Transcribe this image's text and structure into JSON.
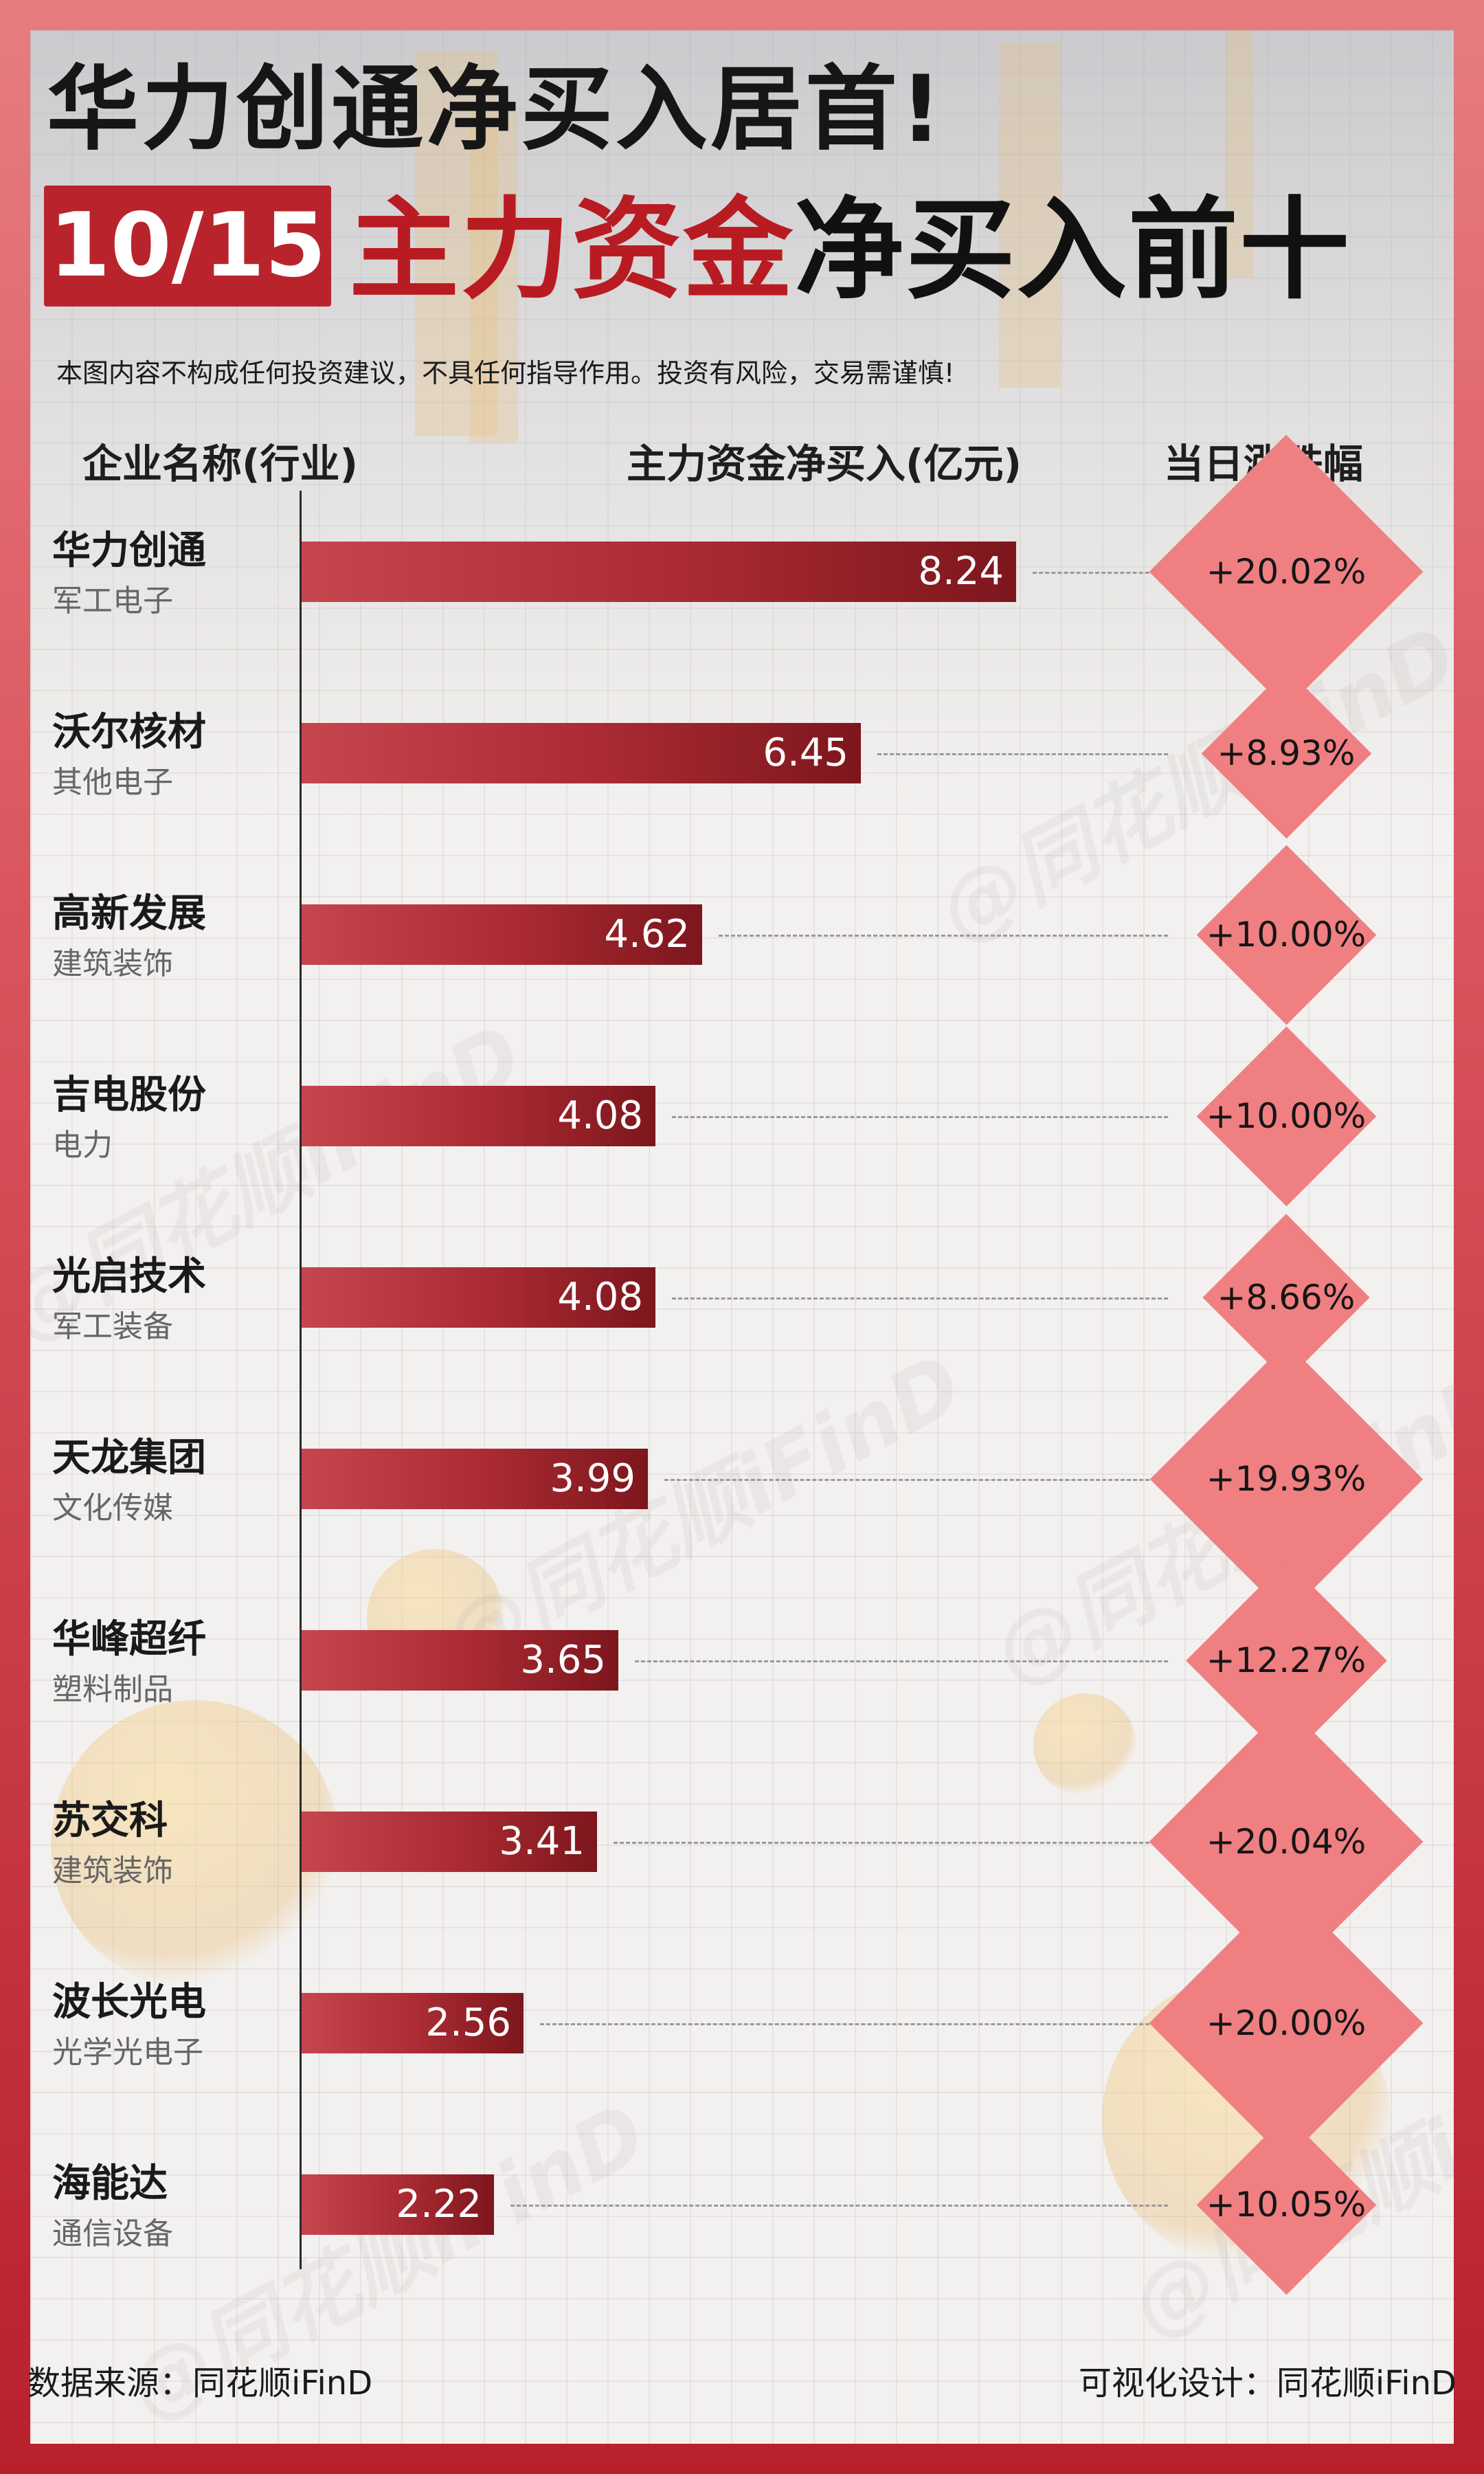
{
  "header": {
    "headline1": "华力创通净买入居首!",
    "date": "10/15",
    "headline2_red": "主力资金",
    "headline2_dark": "净买入前十",
    "disclaimer": "本图内容不构成任何投资建议，不具任何指导作用。投资有风险，交易需谨慎!"
  },
  "columns": {
    "company": "企业名称(行业)",
    "net_buy": "主力资金净买入(亿元)",
    "change": "当日涨跌幅"
  },
  "watermark": "@同花顺iFinD",
  "footer": {
    "source": "数据来源：同花顺iFinD",
    "designer": "可视化设计：同花顺iFinD"
  },
  "colors": {
    "bar": "#a92a32",
    "diamond": "#f07f82",
    "badge": "#b9242c"
  },
  "chart_data": {
    "type": "bar",
    "orientation": "horizontal",
    "categories": [
      "华力创通",
      "沃尔核材",
      "高新发展",
      "吉电股份",
      "光启技术",
      "天龙集团",
      "华峰超纤",
      "苏交科",
      "波长光电",
      "海能达"
    ],
    "industries": [
      "军工电子",
      "其他电子",
      "建筑装饰",
      "电力",
      "军工装备",
      "文化传媒",
      "塑料制品",
      "建筑装饰",
      "光学光电子",
      "通信设备"
    ],
    "values": [
      8.24,
      6.45,
      4.62,
      4.08,
      4.08,
      3.99,
      3.65,
      3.41,
      2.56,
      2.22
    ],
    "value_labels": [
      "8.24",
      "6.45",
      "4.62",
      "4.08",
      "4.08",
      "3.99",
      "3.65",
      "3.41",
      "2.56",
      "2.22"
    ],
    "changes": [
      20.02,
      8.93,
      10.0,
      10.0,
      8.66,
      19.93,
      12.27,
      20.04,
      20.0,
      10.05
    ],
    "change_labels": [
      "+20.02%",
      "+8.93%",
      "+10.00%",
      "+10.00%",
      "+8.66%",
      "+19.93%",
      "+12.27%",
      "+20.04%",
      "+20.00%",
      "+10.05%"
    ],
    "unit": "亿元",
    "grid": false,
    "legend": "none"
  }
}
